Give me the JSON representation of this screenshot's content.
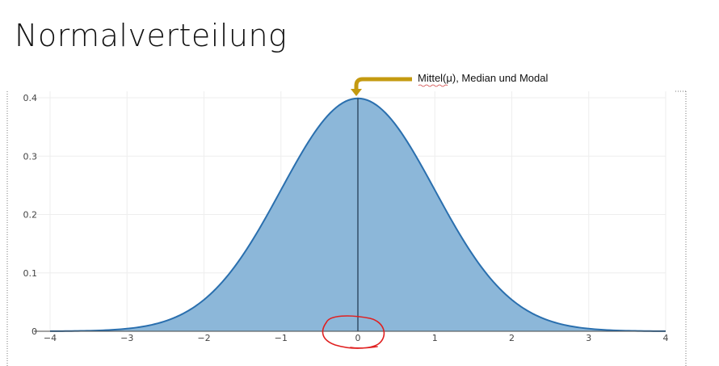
{
  "slide": {
    "title": "Normalverteilung"
  },
  "chart_data": {
    "type": "area",
    "series": [
      {
        "x": [
          -4,
          -3.75,
          -3.5,
          -3.25,
          -3,
          -2.75,
          -2.5,
          -2.25,
          -2,
          -1.75,
          -1.5,
          -1.25,
          -1,
          -0.75,
          -0.5,
          -0.25,
          0,
          0.25,
          0.5,
          0.75,
          1,
          1.25,
          1.5,
          1.75,
          2,
          2.25,
          2.5,
          2.75,
          3,
          3.25,
          3.5,
          3.75,
          4
        ],
        "y": [
          0.0001,
          0.0004,
          0.0009,
          0.002,
          0.0044,
          0.0091,
          0.0175,
          0.0317,
          0.054,
          0.0863,
          0.1295,
          0.1826,
          0.242,
          0.3011,
          0.3521,
          0.3867,
          0.3989,
          0.3867,
          0.3521,
          0.3011,
          0.242,
          0.1826,
          0.1295,
          0.0863,
          0.054,
          0.0317,
          0.0175,
          0.0091,
          0.0044,
          0.002,
          0.0009,
          0.0004,
          0.0001
        ]
      }
    ],
    "xlim": [
      -4,
      4
    ],
    "ylim": [
      0,
      0.4
    ],
    "x_ticks": [
      -4,
      -3,
      -2,
      -1,
      0,
      1,
      2,
      3,
      4
    ],
    "x_tick_labels": [
      "−4",
      "−3",
      "−2",
      "−1",
      "0",
      "1",
      "2",
      "3",
      "4"
    ],
    "y_ticks": [
      0,
      0.1,
      0.2,
      0.3,
      0.4
    ],
    "y_tick_labels": [
      "0",
      "0.1",
      "0.2",
      "0.3",
      "0.4"
    ],
    "grid": true,
    "mean_line_x": 0,
    "annotation": "Mittel(μ), Median und Modal",
    "colors": {
      "fill": "#8cb7d9",
      "line": "#2a6fae",
      "mean_line": "#2c4660",
      "arrow": "#c49a10",
      "grid": "#eeeeee",
      "circle_mark": "#e02020"
    }
  }
}
